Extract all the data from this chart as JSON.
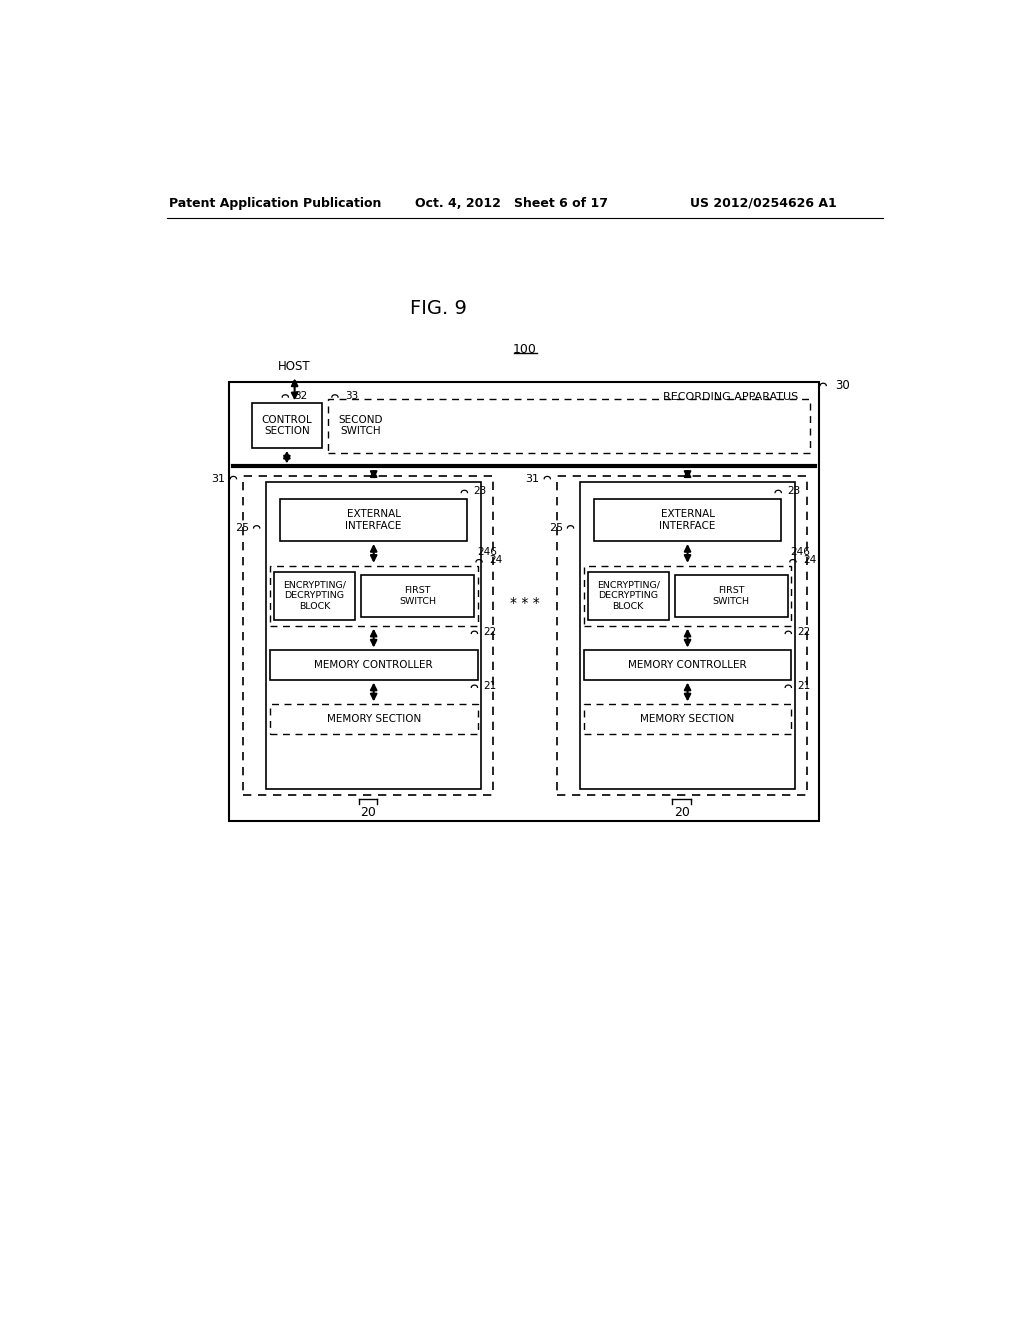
{
  "header_left": "Patent Application Publication",
  "header_mid": "Oct. 4, 2012   Sheet 6 of 17",
  "header_right": "US 2012/0254626 A1",
  "fig_label": "FIG. 9",
  "label_100": "100",
  "label_30": "30",
  "label_recording_apparatus": "RECORDING APPARATUS",
  "label_host": "HOST",
  "label_32": "32",
  "label_33": "33",
  "label_31_left": "31",
  "label_31_right": "31",
  "label_25_left": "25",
  "label_25_right": "25",
  "label_20_left": "20",
  "label_20_right": "20",
  "label_control_section": "CONTROL\nSECTION",
  "label_second_switch": "SECOND\nSWITCH",
  "label_ext_iface_left": "EXTERNAL\nINTERFACE",
  "label_ext_iface_right": "EXTERNAL\nINTERFACE",
  "label_23_left": "23",
  "label_23_right": "23",
  "label_246_left": "246",
  "label_246_right": "246",
  "label_24_left": "24",
  "label_24_right": "24",
  "label_enc_block_left": "ENCRYPTING/\nDECRYPTING\nBLOCK",
  "label_enc_block_right": "ENCRYPTING/\nDECRYPTING\nBLOCK",
  "label_first_switch_left": "FIRST\nSWITCH",
  "label_first_switch_right": "FIRST\nSWITCH",
  "label_22_left": "22",
  "label_22_right": "22",
  "label_mem_ctrl_left": "MEMORY CONTROLLER",
  "label_mem_ctrl_right": "MEMORY CONTROLLER",
  "label_21_left": "21",
  "label_21_right": "21",
  "label_mem_sec_left": "MEMORY SECTION",
  "label_mem_sec_right": "MEMORY SECTION",
  "label_ellipsis": "* * *",
  "bg_color": "#ffffff",
  "text_color": "#000000"
}
